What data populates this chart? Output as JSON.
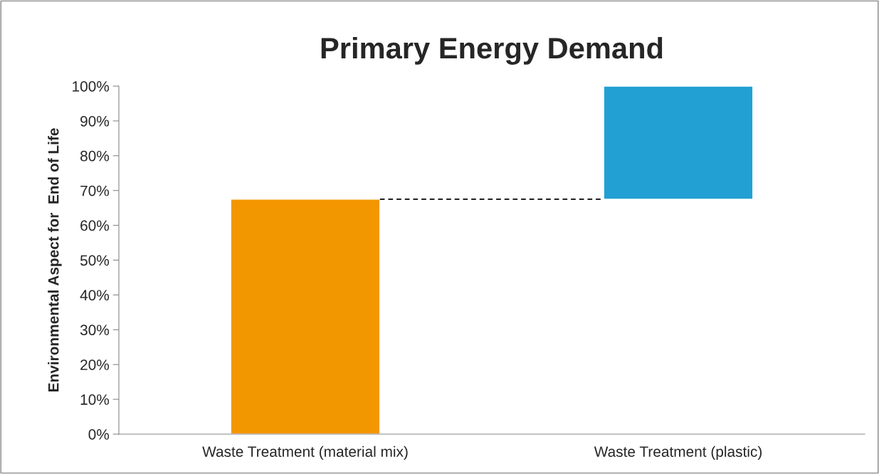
{
  "chart_data": {
    "type": "bar",
    "title": "Primary Energy Demand",
    "ylabel": "Environmental Aspect for  End of Life",
    "categories": [
      "Waste Treatment (material mix)",
      "Waste Treatment (plastic)"
    ],
    "values": [
      67.5,
      32.5
    ],
    "base": [
      0,
      67.5
    ],
    "colors": [
      "#f39700",
      "#22a0d3"
    ],
    "ylim": [
      0,
      100
    ],
    "yticks": [
      {
        "value": 0,
        "label": "0%"
      },
      {
        "value": 10,
        "label": "10%"
      },
      {
        "value": 20,
        "label": "20%"
      },
      {
        "value": 30,
        "label": "30%"
      },
      {
        "value": 40,
        "label": "40%"
      },
      {
        "value": 50,
        "label": "50%"
      },
      {
        "value": 60,
        "label": "60%"
      },
      {
        "value": 70,
        "label": "70%"
      },
      {
        "value": 80,
        "label": "80%"
      },
      {
        "value": 90,
        "label": "90%"
      },
      {
        "value": 100,
        "label": "100%"
      }
    ],
    "ref_lines": [
      {
        "axis": "y",
        "value": 67.5,
        "label": null,
        "color": "#000000",
        "line_style": "dashed"
      }
    ],
    "grid": false,
    "legend": false
  }
}
